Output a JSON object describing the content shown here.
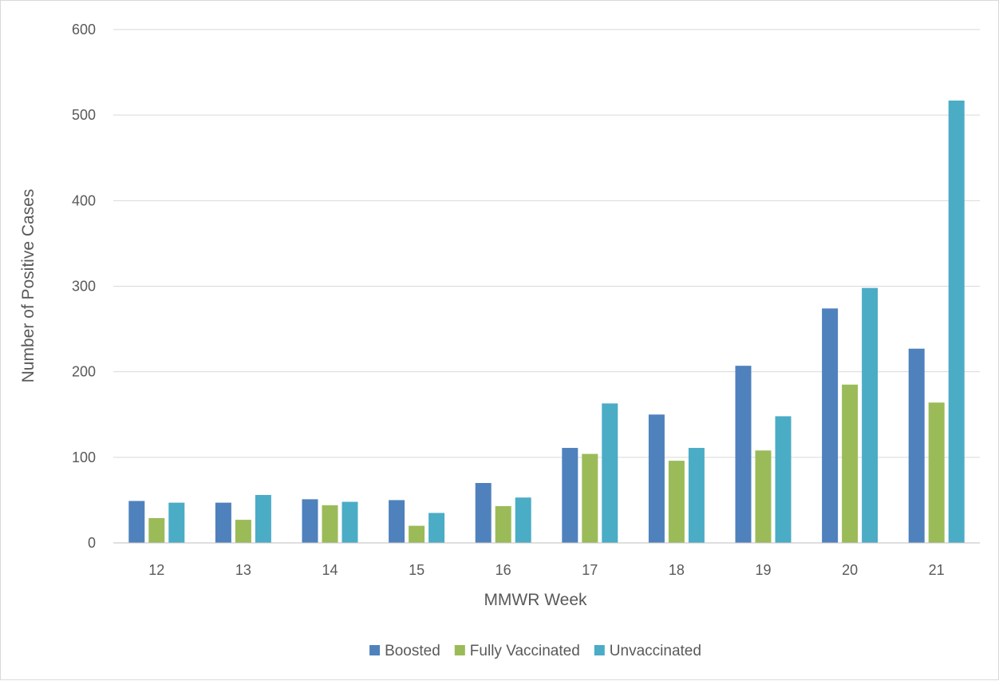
{
  "chart_data": {
    "type": "bar",
    "title": "",
    "xlabel": "MMWR Week",
    "ylabel": "Number of Positive Cases",
    "categories": [
      "12",
      "13",
      "14",
      "15",
      "16",
      "17",
      "18",
      "19",
      "20",
      "21"
    ],
    "series": [
      {
        "name": "Boosted",
        "color": "#4f81bd",
        "values": [
          49,
          47,
          51,
          50,
          70,
          111,
          150,
          207,
          274,
          227
        ]
      },
      {
        "name": "Fully Vaccinated",
        "color": "#9bbb59",
        "values": [
          29,
          27,
          44,
          20,
          43,
          104,
          96,
          108,
          185,
          164
        ]
      },
      {
        "name": "Unvaccinated",
        "color": "#4bacc6",
        "values": [
          47,
          56,
          48,
          35,
          53,
          163,
          111,
          148,
          298,
          517
        ]
      }
    ],
    "ylim": [
      0,
      600
    ],
    "yticks": [
      0,
      100,
      200,
      300,
      400,
      500,
      600
    ],
    "grid": true,
    "legend_position": "bottom"
  }
}
